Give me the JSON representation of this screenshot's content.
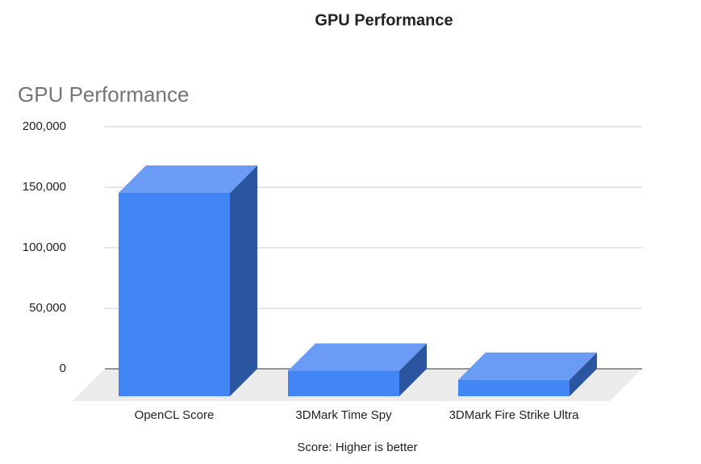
{
  "header": {
    "title": "GPU Performance"
  },
  "chart_data": {
    "type": "bar3d",
    "title": "GPU Performance",
    "x_label": "Score: Higher is better",
    "categories": [
      "OpenCL Score",
      "3DMark Time Spy",
      "3DMark Fire Strike Ultra"
    ],
    "values": [
      168000,
      21000,
      13500
    ],
    "color": "#4285f4",
    "ylim": [
      0,
      200000
    ],
    "yticks": [
      0,
      {
        "value": 50000,
        "label": "50,000"
      },
      {
        "value": 100000,
        "label": "100,000"
      },
      {
        "value": 150000,
        "label": "150,000"
      },
      {
        "value": 200000,
        "label": "200,000"
      }
    ],
    "grid": true
  }
}
